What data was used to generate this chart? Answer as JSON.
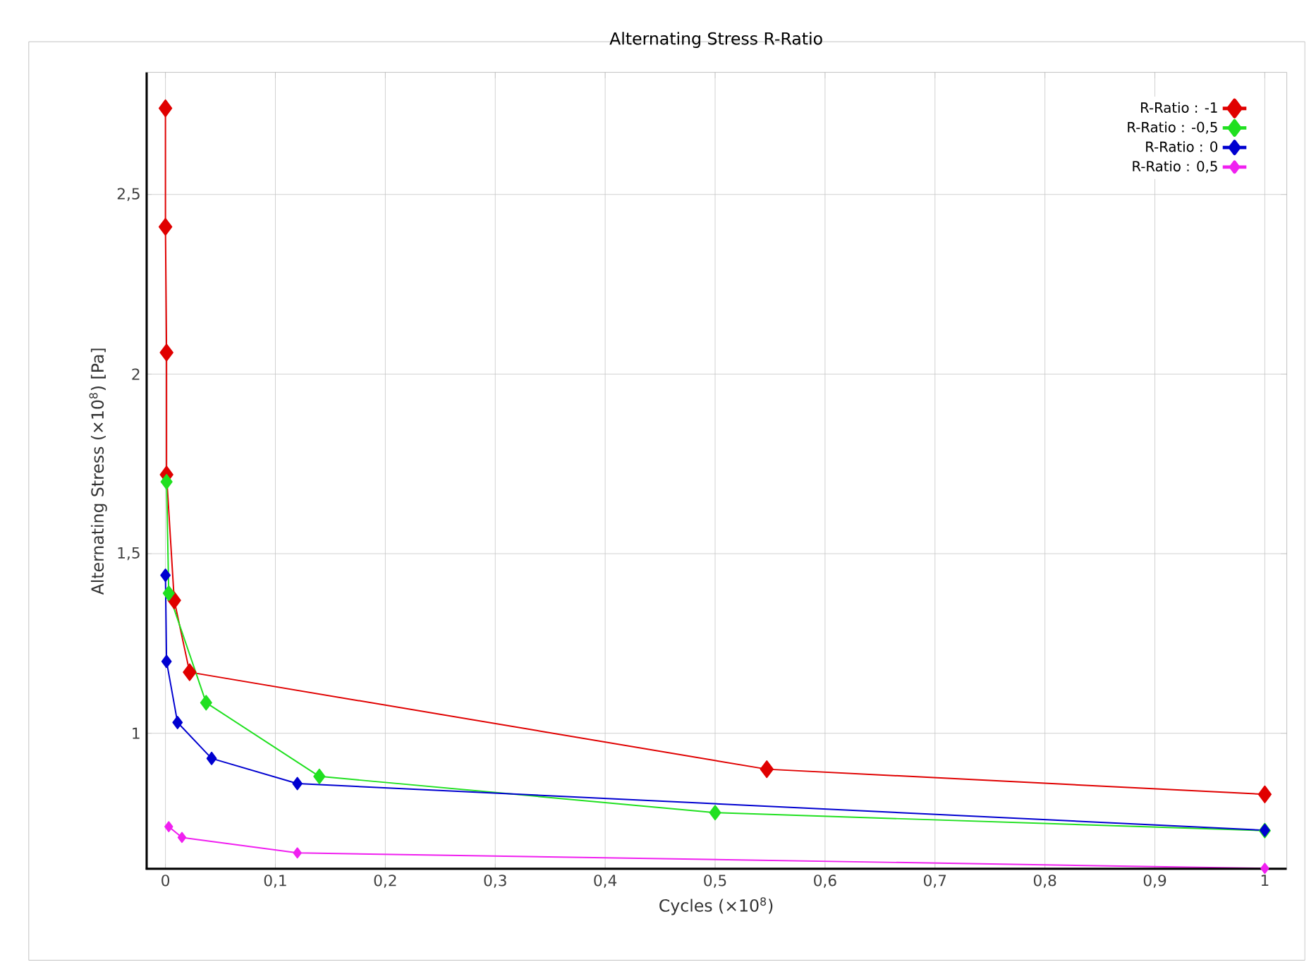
{
  "chart_data": {
    "type": "line",
    "title": "Alternating Stress R-Ratio",
    "xlabel": "Cycles (×10$^{8}$)",
    "ylabel": "Alternating Stress (×10$^{8}$) [Pa]",
    "xlim": [
      -0.018,
      1.02
    ],
    "ylim": [
      0.62,
      2.84
    ],
    "xticks": [
      0,
      {
        "value": 0.1,
        "label": "0,1"
      },
      {
        "value": 0.2,
        "label": "0,2"
      },
      {
        "value": 0.3,
        "label": "0,3"
      },
      {
        "value": 0.4,
        "label": "0,4"
      },
      {
        "value": 0.5,
        "label": "0,5"
      },
      {
        "value": 0.6,
        "label": "0,6"
      },
      {
        "value": 0.7,
        "label": "0,7"
      },
      {
        "value": 0.8,
        "label": "0,8"
      },
      {
        "value": 0.9,
        "label": "0,9"
      },
      1
    ],
    "yticks": [
      1,
      {
        "value": 1.5,
        "label": "1,5"
      },
      2,
      {
        "value": 2.5,
        "label": "2,5"
      }
    ],
    "grid": true,
    "legend": "top right",
    "marker": "diamond",
    "line_style": "solid",
    "series": [
      {
        "name": "R-Ratio : -1",
        "color": "#e00000",
        "x": [
          0,
          0,
          0.001,
          0.001,
          0.008,
          0.022,
          0.547,
          1
        ],
        "values": [
          2.74,
          2.41,
          2.06,
          1.72,
          1.37,
          1.17,
          0.9,
          0.83
        ]
      },
      {
        "name": "R-Ratio : -0,5",
        "color": "#20e020",
        "x": [
          0.001,
          0.003,
          0.037,
          0.14,
          0.5,
          1
        ],
        "values": [
          1.7,
          1.39,
          1.085,
          0.88,
          0.779,
          0.729
        ]
      },
      {
        "name": "R-Ratio : 0",
        "color": "#0000d0",
        "x": [
          0,
          0.001,
          0.011,
          0.042,
          0.12,
          1
        ],
        "values": [
          1.44,
          1.2,
          1.03,
          0.93,
          0.86,
          0.73
        ]
      },
      {
        "name": "R-Ratio : 0,5",
        "color": "#f020f0",
        "x": [
          0.003,
          0.015,
          0.12,
          1
        ],
        "values": [
          0.74,
          0.71,
          0.667,
          0.624
        ]
      }
    ]
  }
}
